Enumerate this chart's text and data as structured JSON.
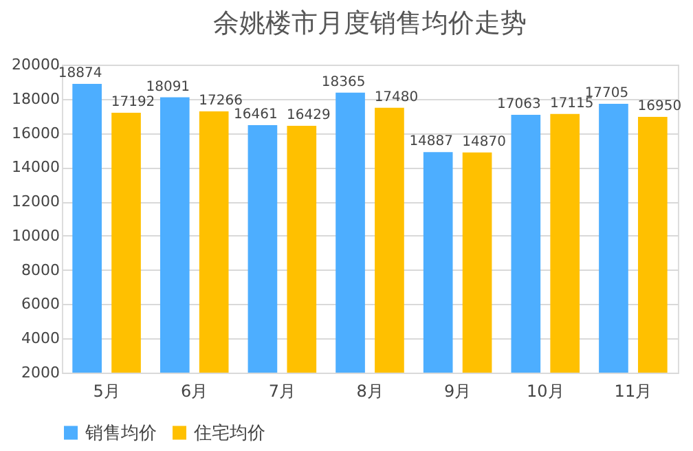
{
  "chart_data": {
    "type": "bar",
    "title": "余姚楼市月度销售均价走势",
    "categories": [
      "5月",
      "6月",
      "7月",
      "8月",
      "9月",
      "10月",
      "11月"
    ],
    "series": [
      {
        "name": "销售均价",
        "color": "#4daeff",
        "values": [
          18874,
          18091,
          16461,
          18365,
          14887,
          17063,
          17705
        ]
      },
      {
        "name": "住宅均价",
        "color": "#ffc000",
        "values": [
          17192,
          17266,
          16429,
          17480,
          14870,
          17115,
          16950
        ]
      }
    ],
    "ylim": [
      2000,
      20000
    ],
    "yticks": [
      2000,
      4000,
      6000,
      8000,
      10000,
      12000,
      14000,
      16000,
      18000,
      20000
    ],
    "grid": "y",
    "legend": "bottom",
    "data_labels": true
  }
}
